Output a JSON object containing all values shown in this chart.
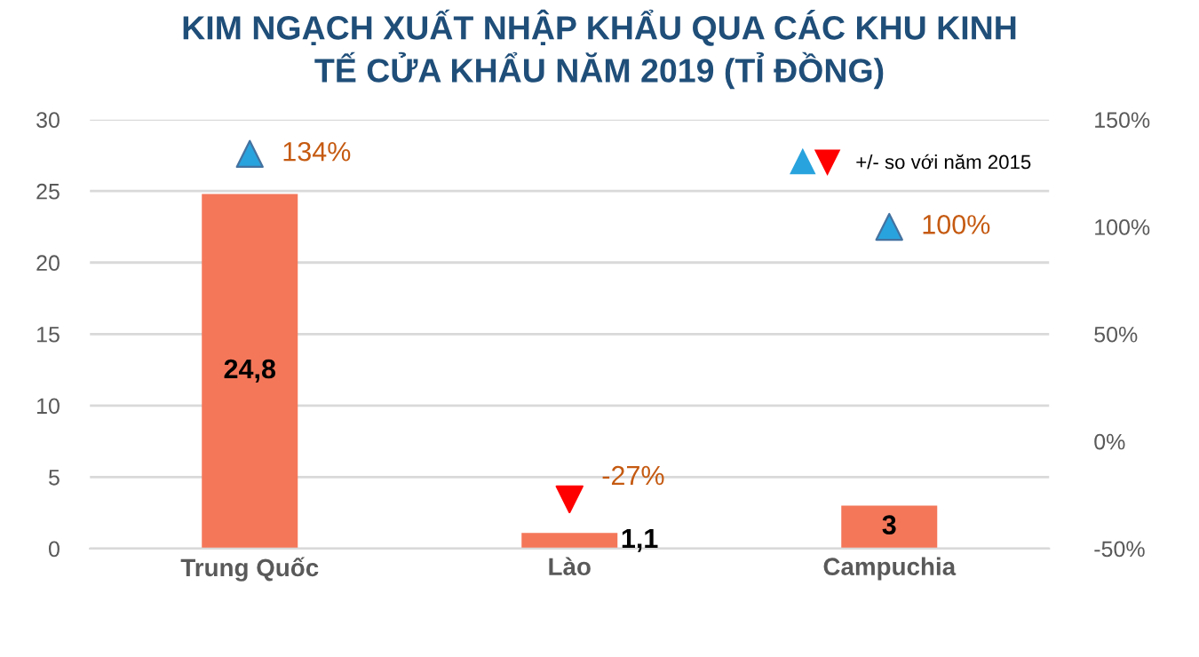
{
  "chart_data": {
    "type": "bar",
    "title": "KIM NGẠCH XUẤT NHẬP KHẨU QUA CÁC KHU KINH\nTẾ CỬA KHẨU NĂM 2019 (TỈ ĐỒNG)",
    "categories": [
      "Trung Quốc",
      "Lào",
      "Campuchia"
    ],
    "series": [
      {
        "color": "#f4775a",
        "values": [
          24.8,
          1.1,
          3
        ],
        "value_labels": [
          "24,8",
          "1,1",
          "3"
        ]
      },
      {
        "type": "scatter",
        "axis": "y2",
        "name": "+/- so với năm 2015",
        "marker": "triangle",
        "colors": [
          "#29a3dd",
          "#ff0000",
          "#29a3dd"
        ],
        "values": [
          134,
          -27,
          100
        ],
        "value_labels": [
          "134%",
          "-27%",
          "100%"
        ]
      }
    ],
    "ylim": [
      0,
      30
    ],
    "yticks": [
      0,
      5,
      10,
      15,
      20,
      25,
      30
    ],
    "y2lim": [
      -50,
      150
    ],
    "y2ticks": [
      {
        "value": -50,
        "label": "-50%"
      },
      {
        "value": 0,
        "label": "0%"
      },
      {
        "value": 50,
        "label": "50%"
      },
      {
        "value": 100,
        "label": "100%"
      },
      {
        "value": 150,
        "label": "150%"
      }
    ],
    "grid": "y",
    "legend": "top right"
  }
}
